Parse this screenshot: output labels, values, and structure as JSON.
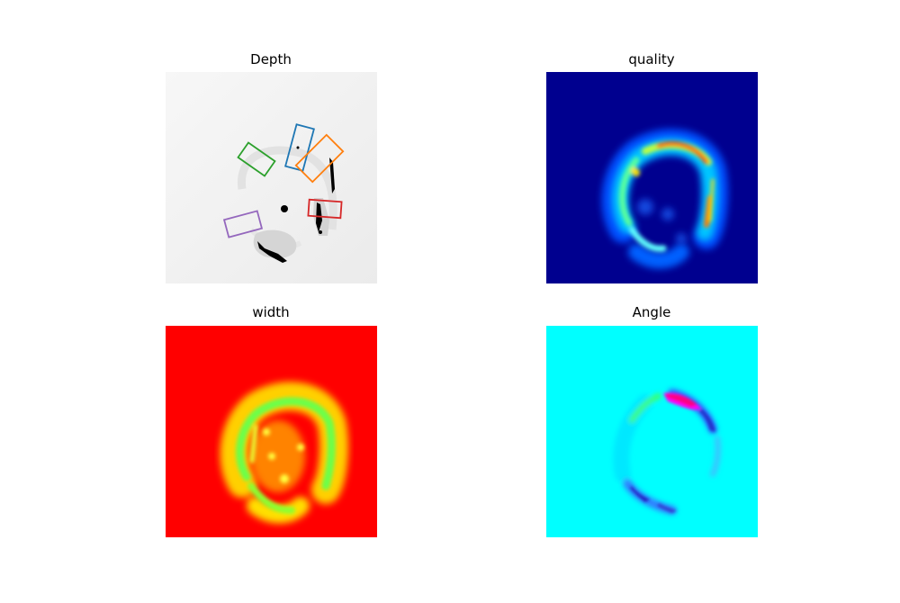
{
  "panels": [
    {
      "title": "Depth",
      "colormap": "gray"
    },
    {
      "title": "quality",
      "colormap": "jet"
    },
    {
      "title": "width",
      "colormap": "hsv"
    },
    {
      "title": "Angle",
      "colormap": "hsv"
    }
  ],
  "grasp_rectangles": [
    {
      "color": "#1f77b4"
    },
    {
      "color": "#ff7f0e"
    },
    {
      "color": "#2ca02c"
    },
    {
      "color": "#d62728"
    },
    {
      "color": "#9467bd"
    }
  ]
}
